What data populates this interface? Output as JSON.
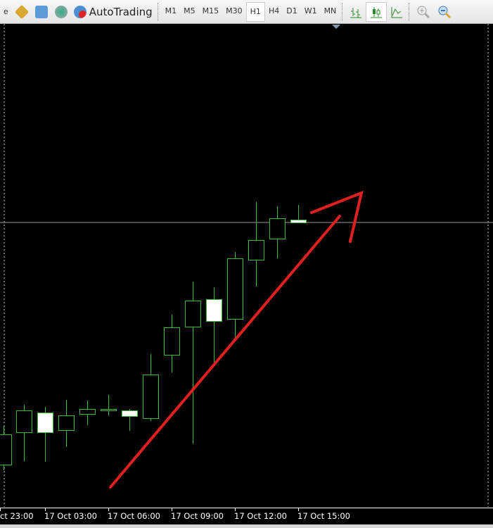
{
  "toolbar": {
    "partial_label": "e",
    "autotrading_label": "AutoTrading",
    "timeframes": [
      "M1",
      "M5",
      "M15",
      "M30",
      "H1",
      "H4",
      "D1",
      "W1",
      "MN"
    ],
    "active_timeframe": "H1",
    "icons": [
      "navigator-icon",
      "market-watch-icon",
      "signals-icon",
      "autotrading-icon",
      "bar-chart-icon",
      "candlestick-chart-icon",
      "line-chart-icon",
      "zoom-in-icon",
      "zoom-out-icon"
    ]
  },
  "chart": {
    "type": "candlestick",
    "background": "#000000",
    "candle_color": "#3cb83c",
    "bear_fill": "#ffffff",
    "annotation_color": "#e02020",
    "price_line_color": "#9a9a9a",
    "time_labels": [
      "ct 23:00",
      "17 Oct 03:00",
      "17 Oct 06:00",
      "17 Oct 09:00",
      "17 Oct 12:00",
      "17 Oct 15:00"
    ]
  }
}
